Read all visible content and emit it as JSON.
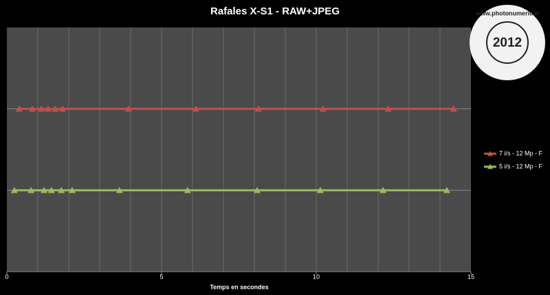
{
  "chart_data": {
    "type": "line",
    "title": "Rafales X-S1 - RAW+JPEG",
    "x_label": "Temps en secondes",
    "xlim": [
      0,
      15
    ],
    "xticks": [
      0,
      5,
      10,
      15
    ],
    "xgrid_step": 1,
    "ylim": [
      0,
      3
    ],
    "grid": true,
    "legend": "right",
    "series": [
      {
        "name": "7 i/s - 12 Mp - F",
        "color": "#c0504d",
        "x": [
          0.4,
          0.82,
          1.11,
          1.33,
          1.56,
          1.8,
          3.93,
          6.11,
          8.13,
          10.22,
          12.33,
          14.44
        ],
        "values": [
          2,
          2,
          2,
          2,
          2,
          2,
          2,
          2,
          2,
          2,
          2,
          2
        ]
      },
      {
        "name": "5 i/s - 12 Mp - F",
        "color": "#9bbb59",
        "x": [
          0.24,
          0.78,
          1.2,
          1.44,
          1.76,
          2.11,
          3.64,
          5.84,
          8.09,
          10.13,
          12.16,
          14.22
        ],
        "values": [
          1,
          1,
          1,
          1,
          1,
          1,
          1,
          1,
          1,
          1,
          1,
          1
        ]
      }
    ],
    "watermark": {
      "year": "2012",
      "site": "www.photonumeric.fr"
    }
  }
}
